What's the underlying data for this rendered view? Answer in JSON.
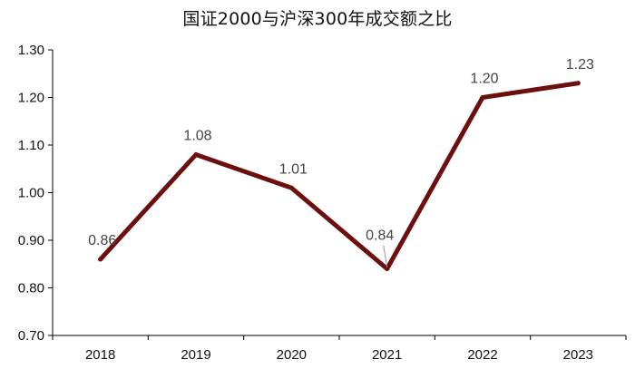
{
  "chart_data": {
    "type": "line",
    "title": "国证2000与沪深300年成交额之比",
    "xlabel": "",
    "ylabel": "",
    "categories": [
      "2018",
      "2019",
      "2020",
      "2021",
      "2022",
      "2023"
    ],
    "series": [
      {
        "values": [
          0.86,
          1.08,
          1.01,
          0.84,
          1.2,
          1.23
        ]
      }
    ],
    "data_labels": [
      "0.86",
      "1.08",
      "1.01",
      "0.84",
      "1.20",
      "1.23"
    ],
    "yticks": [
      "0.70",
      "0.80",
      "0.90",
      "1.00",
      "1.10",
      "1.20",
      "1.30"
    ],
    "ylim": [
      0.7,
      1.3
    ],
    "grid": false,
    "legend": "none",
    "colors": {
      "line": "#6e0f0f",
      "axis": "#000000",
      "text": "#111111",
      "label": "#444444"
    }
  }
}
